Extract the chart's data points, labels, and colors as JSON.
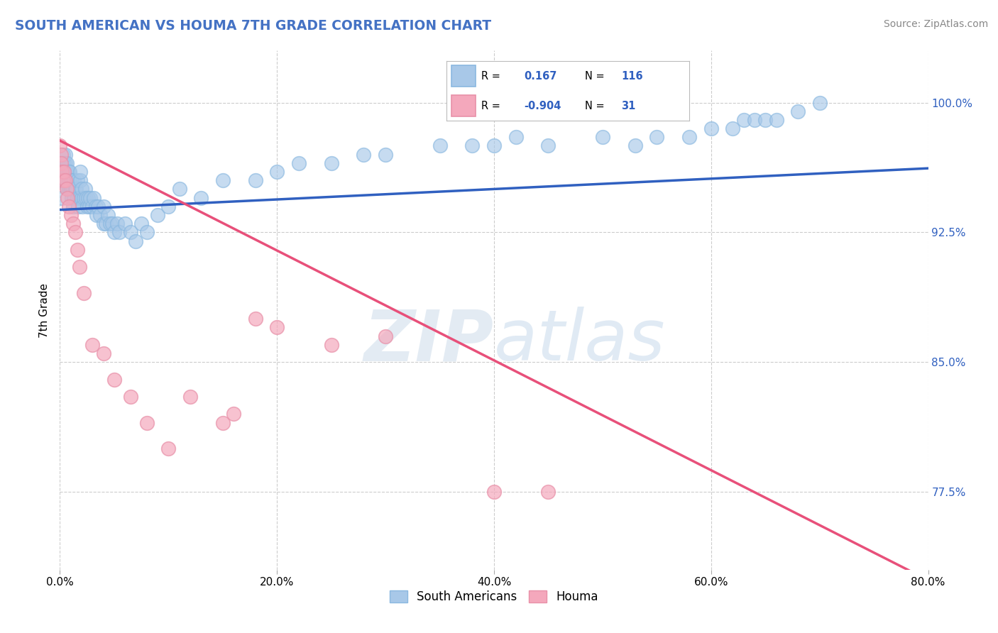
{
  "title": "SOUTH AMERICAN VS HOUMA 7TH GRADE CORRELATION CHART",
  "source_text": "Source: ZipAtlas.com",
  "ylabel": "7th Grade",
  "watermark_zip": "ZIP",
  "watermark_atlas": "atlas",
  "xlim": [
    0.0,
    0.8
  ],
  "ylim": [
    0.73,
    1.03
  ],
  "xtick_labels": [
    "0.0%",
    "20.0%",
    "40.0%",
    "60.0%",
    "80.0%"
  ],
  "xtick_vals": [
    0.0,
    0.2,
    0.4,
    0.6,
    0.8
  ],
  "ytick_labels": [
    "77.5%",
    "85.0%",
    "92.5%",
    "100.0%"
  ],
  "ytick_vals": [
    0.775,
    0.85,
    0.925,
    1.0
  ],
  "legend_entries": [
    "South Americans",
    "Houma"
  ],
  "blue_R": "0.167",
  "blue_N": "116",
  "pink_R": "-0.904",
  "pink_N": "31",
  "blue_color": "#a8c8e8",
  "pink_color": "#f4a8bc",
  "blue_line_color": "#3060c0",
  "pink_line_color": "#e8507a",
  "title_color": "#4472c4",
  "source_color": "#888888",
  "background_color": "#ffffff",
  "grid_color": "#cccccc",
  "blue_scatter_x": [
    0.001,
    0.002,
    0.002,
    0.003,
    0.003,
    0.003,
    0.003,
    0.004,
    0.004,
    0.005,
    0.005,
    0.005,
    0.005,
    0.006,
    0.006,
    0.006,
    0.007,
    0.007,
    0.007,
    0.008,
    0.008,
    0.008,
    0.009,
    0.009,
    0.009,
    0.01,
    0.01,
    0.011,
    0.011,
    0.011,
    0.012,
    0.012,
    0.013,
    0.013,
    0.014,
    0.015,
    0.016,
    0.016,
    0.017,
    0.018,
    0.019,
    0.019,
    0.02,
    0.02,
    0.021,
    0.022,
    0.023,
    0.024,
    0.025,
    0.026,
    0.027,
    0.028,
    0.03,
    0.031,
    0.033,
    0.034,
    0.035,
    0.037,
    0.04,
    0.04,
    0.042,
    0.044,
    0.046,
    0.048,
    0.05,
    0.053,
    0.055,
    0.06,
    0.065,
    0.07,
    0.075,
    0.08,
    0.09,
    0.1,
    0.11,
    0.13,
    0.15,
    0.18,
    0.2,
    0.22,
    0.25,
    0.28,
    0.3,
    0.35,
    0.38,
    0.4,
    0.42,
    0.45,
    0.5,
    0.53,
    0.55,
    0.58,
    0.6,
    0.62,
    0.63,
    0.64,
    0.65,
    0.66,
    0.68,
    0.7
  ],
  "blue_scatter_y": [
    0.955,
    0.945,
    0.965,
    0.955,
    0.96,
    0.965,
    0.97,
    0.96,
    0.965,
    0.955,
    0.96,
    0.965,
    0.97,
    0.955,
    0.96,
    0.965,
    0.95,
    0.955,
    0.96,
    0.95,
    0.955,
    0.96,
    0.95,
    0.955,
    0.96,
    0.95,
    0.955,
    0.945,
    0.95,
    0.955,
    0.94,
    0.95,
    0.945,
    0.955,
    0.95,
    0.95,
    0.945,
    0.955,
    0.94,
    0.945,
    0.955,
    0.96,
    0.945,
    0.95,
    0.94,
    0.945,
    0.95,
    0.945,
    0.94,
    0.945,
    0.94,
    0.945,
    0.94,
    0.945,
    0.94,
    0.935,
    0.94,
    0.935,
    0.93,
    0.94,
    0.93,
    0.935,
    0.93,
    0.93,
    0.925,
    0.93,
    0.925,
    0.93,
    0.925,
    0.92,
    0.93,
    0.925,
    0.935,
    0.94,
    0.95,
    0.945,
    0.955,
    0.955,
    0.96,
    0.965,
    0.965,
    0.97,
    0.97,
    0.975,
    0.975,
    0.975,
    0.98,
    0.975,
    0.98,
    0.975,
    0.98,
    0.98,
    0.985,
    0.985,
    0.99,
    0.99,
    0.99,
    0.99,
    0.995,
    1.0
  ],
  "pink_scatter_x": [
    0.0,
    0.001,
    0.001,
    0.002,
    0.003,
    0.004,
    0.005,
    0.006,
    0.007,
    0.008,
    0.01,
    0.012,
    0.014,
    0.016,
    0.018,
    0.022,
    0.03,
    0.04,
    0.05,
    0.065,
    0.08,
    0.1,
    0.12,
    0.15,
    0.16,
    0.18,
    0.2,
    0.25,
    0.3,
    0.4,
    0.45
  ],
  "pink_scatter_y": [
    0.975,
    0.97,
    0.965,
    0.96,
    0.955,
    0.96,
    0.955,
    0.95,
    0.945,
    0.94,
    0.935,
    0.93,
    0.925,
    0.915,
    0.905,
    0.89,
    0.86,
    0.855,
    0.84,
    0.83,
    0.815,
    0.8,
    0.83,
    0.815,
    0.82,
    0.875,
    0.87,
    0.86,
    0.865,
    0.775,
    0.775
  ],
  "blue_trend_x": [
    0.0,
    0.8
  ],
  "blue_trend_y": [
    0.938,
    0.962
  ],
  "pink_trend_x": [
    0.0,
    0.8
  ],
  "pink_trend_y": [
    0.978,
    0.724
  ]
}
